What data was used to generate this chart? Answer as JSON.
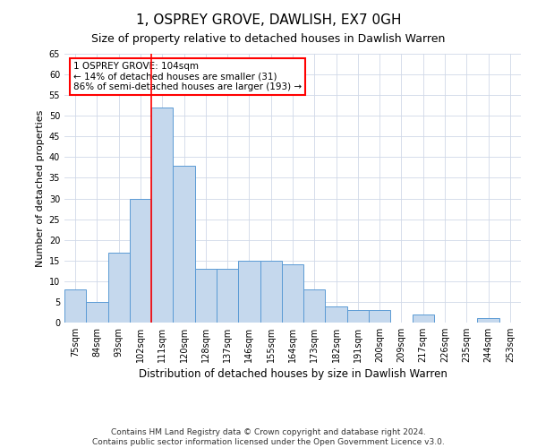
{
  "title": "1, OSPREY GROVE, DAWLISH, EX7 0GH",
  "subtitle": "Size of property relative to detached houses in Dawlish Warren",
  "xlabel": "Distribution of detached houses by size in Dawlish Warren",
  "ylabel": "Number of detached properties",
  "categories": [
    "75sqm",
    "84sqm",
    "93sqm",
    "102sqm",
    "111sqm",
    "120sqm",
    "128sqm",
    "137sqm",
    "146sqm",
    "155sqm",
    "164sqm",
    "173sqm",
    "182sqm",
    "191sqm",
    "200sqm",
    "209sqm",
    "217sqm",
    "226sqm",
    "235sqm",
    "244sqm",
    "253sqm"
  ],
  "values": [
    8,
    5,
    17,
    30,
    52,
    38,
    13,
    13,
    15,
    15,
    14,
    8,
    4,
    3,
    3,
    0,
    2,
    0,
    0,
    1,
    0
  ],
  "bar_color": "#c5d8ed",
  "bar_edge_color": "#5b9bd5",
  "annotation_line_label": "1 OSPREY GROVE: 104sqm",
  "annotation_smaller_pct": "← 14% of detached houses are smaller (31)",
  "annotation_larger_pct": "86% of semi-detached houses are larger (193) →",
  "vline_x": 3.5,
  "ylim": [
    0,
    65
  ],
  "yticks": [
    0,
    5,
    10,
    15,
    20,
    25,
    30,
    35,
    40,
    45,
    50,
    55,
    60,
    65
  ],
  "background_color": "#ffffff",
  "grid_color": "#d0d8e8",
  "footer_line1": "Contains HM Land Registry data © Crown copyright and database right 2024.",
  "footer_line2": "Contains public sector information licensed under the Open Government Licence v3.0.",
  "title_fontsize": 11,
  "subtitle_fontsize": 9,
  "xlabel_fontsize": 8.5,
  "ylabel_fontsize": 8,
  "tick_fontsize": 7,
  "annotation_fontsize": 7.5,
  "footer_fontsize": 6.5
}
